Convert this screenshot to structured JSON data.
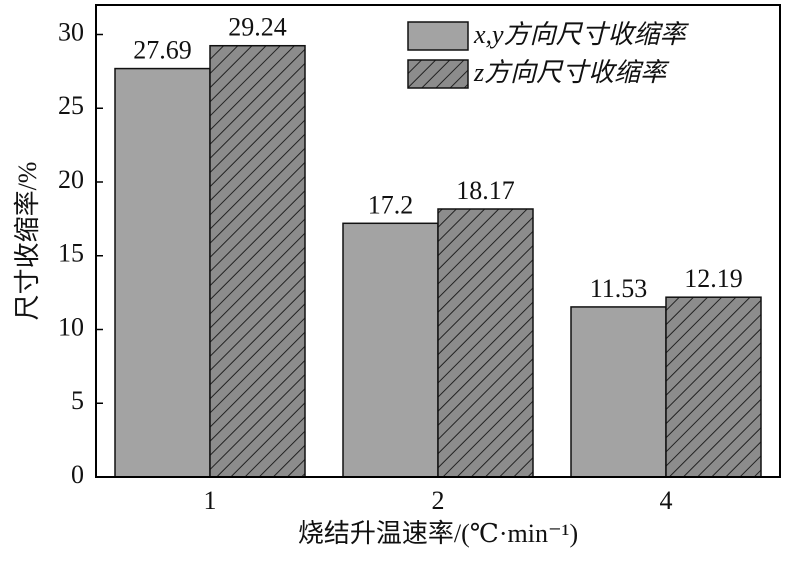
{
  "chart_data": {
    "type": "bar",
    "x_label": "烧结升温速率/(℃·min⁻¹)",
    "y_label": "尺寸收缩率/%",
    "categories": [
      "1",
      "2",
      "4"
    ],
    "series": [
      {
        "name": "x,y方向尺寸收缩率",
        "color": "#a3a3a3",
        "hatch": false,
        "values": [
          27.69,
          17.2,
          11.53
        ]
      },
      {
        "name": "z方向尺寸收缩率",
        "color": "#8c8c8c",
        "hatch": true,
        "values": [
          29.24,
          18.17,
          12.19
        ]
      }
    ],
    "ylim": [
      0,
      32
    ],
    "yticks": [
      0,
      5,
      10,
      15,
      20,
      25,
      30
    ],
    "legend": "upper right"
  }
}
